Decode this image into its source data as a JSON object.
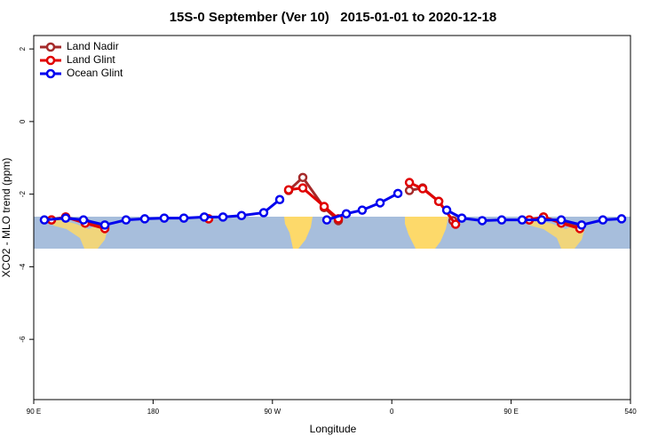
{
  "chart_data": {
    "type": "line",
    "title": "15S-0 September (Ver 10)   2015-01-01 to 2020-12-18",
    "xlabel": "Longitude",
    "ylabel": "XCO2 - MLO trend (ppm)",
    "xlim": [
      90,
      540
    ],
    "ylim": [
      -7.66,
      2.37
    ],
    "xticks": [
      {
        "value": 90,
        "label": "90 E"
      },
      180,
      {
        "value": 270,
        "label": "90 W"
      },
      {
        "value": 360,
        "label": "0"
      },
      {
        "value": 450,
        "label": "90 E"
      },
      540
    ],
    "yticks": [
      2,
      0,
      -2,
      -4,
      -6
    ],
    "legend": "top-left",
    "series": [
      {
        "name": "Land Nadir",
        "color": "#a52a2a",
        "x": [
          103.4,
          114.1,
          128.8,
          143.6,
          null,
          221.9,
          null,
          282.2,
          292.9,
          309.0,
          319.7,
          null,
          373.3,
          383.3,
          395.4,
          406.1,
          null,
          463.7,
          474.4,
          487.8,
          501.8
        ],
        "values": [
          -2.71,
          -2.63,
          -2.78,
          -2.9,
          null,
          -2.68,
          null,
          -1.9,
          -1.54,
          -2.37,
          -2.73,
          null,
          -1.9,
          -1.83,
          -2.2,
          -2.73,
          null,
          -2.71,
          -2.63,
          -2.78,
          -2.9
        ]
      },
      {
        "name": "Land Glint",
        "color": "#e00000",
        "x": [
          103.4,
          114.1,
          128.8,
          143.6,
          null,
          221.9,
          null,
          282.2,
          292.9,
          309.0,
          319.7,
          null,
          373.3,
          383.3,
          395.4,
          408.1,
          null,
          463.7,
          474.4,
          487.8,
          501.8
        ],
        "values": [
          -2.71,
          -2.63,
          -2.8,
          -2.95,
          null,
          -2.68,
          null,
          -1.88,
          -1.83,
          -2.34,
          -2.68,
          null,
          -1.68,
          -1.85,
          -2.2,
          -2.83,
          null,
          -2.71,
          -2.63,
          -2.8,
          -2.95
        ]
      },
      {
        "name": "Ocean Glint",
        "color": "#0000ee",
        "x": [
          98.0,
          114.1,
          127.5,
          143.6,
          159.6,
          173.7,
          188.4,
          203.2,
          218.6,
          232.7,
          246.7,
          263.4,
          275.5,
          null,
          311.0,
          325.7,
          337.7,
          351.2,
          364.6,
          null,
          401.4,
          412.8,
          428.2,
          442.9,
          458.3,
          473.0,
          487.8,
          503.2,
          519.2,
          533.3
        ],
        "values": [
          -2.71,
          -2.66,
          -2.71,
          -2.85,
          -2.71,
          -2.68,
          -2.66,
          -2.66,
          -2.63,
          -2.63,
          -2.59,
          -2.51,
          -2.15,
          null,
          -2.71,
          -2.54,
          -2.44,
          -2.24,
          -1.98,
          null,
          -2.44,
          -2.66,
          -2.73,
          -2.71,
          -2.71,
          -2.71,
          -2.71,
          -2.85,
          -2.71,
          -2.68
        ]
      }
    ]
  }
}
